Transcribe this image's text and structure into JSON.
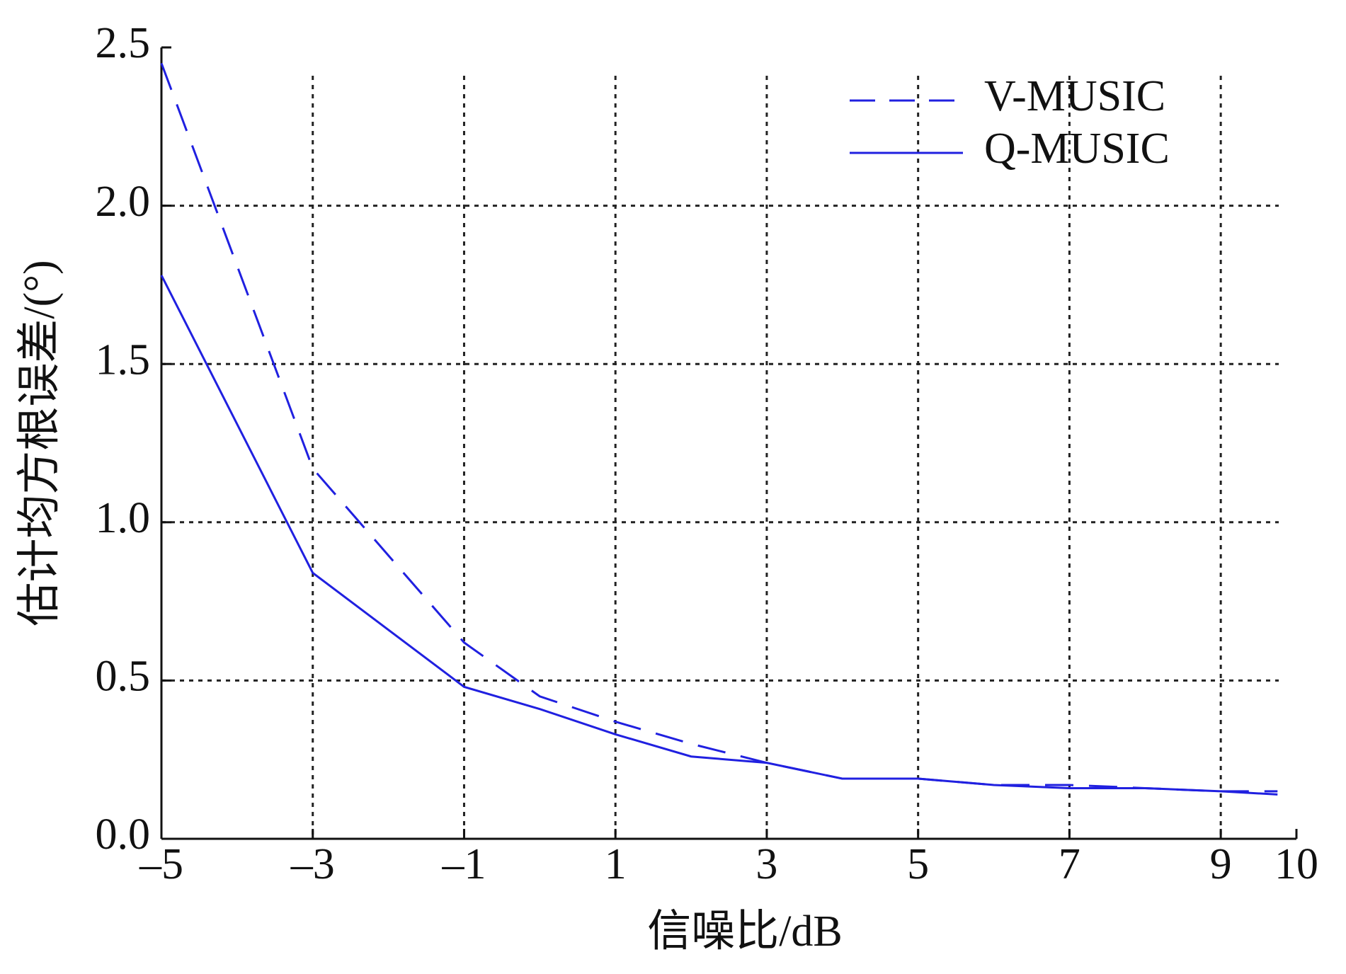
{
  "chart_data": {
    "type": "line",
    "x_label": "信噪比/dB",
    "y_label": "估计均方根误差/(°)",
    "x": [
      -5,
      -3,
      -1,
      0,
      1,
      2,
      3,
      4,
      5,
      6,
      7,
      8,
      9,
      9.75
    ],
    "series": [
      {
        "name": "V-MUSIC",
        "color": "#2020e0",
        "dash": true,
        "values": [
          2.45,
          1.17,
          0.62,
          0.45,
          0.37,
          0.3,
          0.24,
          0.19,
          0.19,
          0.17,
          0.17,
          0.16,
          0.15,
          0.15
        ]
      },
      {
        "name": "Q-MUSIC",
        "color": "#2020e0",
        "dash": false,
        "values": [
          1.78,
          0.84,
          0.48,
          0.41,
          0.33,
          0.26,
          0.24,
          0.19,
          0.19,
          0.17,
          0.16,
          0.16,
          0.15,
          0.14
        ]
      }
    ],
    "xlim": [
      -5,
      10
    ],
    "ylim": [
      0,
      2.5
    ],
    "xticks": [
      {
        "value": -5,
        "label": "–5"
      },
      {
        "value": -3,
        "label": "–3"
      },
      {
        "value": -1,
        "label": "–1"
      },
      1,
      3,
      5,
      7,
      9,
      10
    ],
    "yticks": [
      {
        "value": 0,
        "label": "0.0"
      },
      0.5,
      {
        "value": 1,
        "label": "1.0"
      },
      1.5,
      {
        "value": 2,
        "label": "2.0"
      },
      2.5
    ],
    "grid": true,
    "legend": "upper right"
  }
}
